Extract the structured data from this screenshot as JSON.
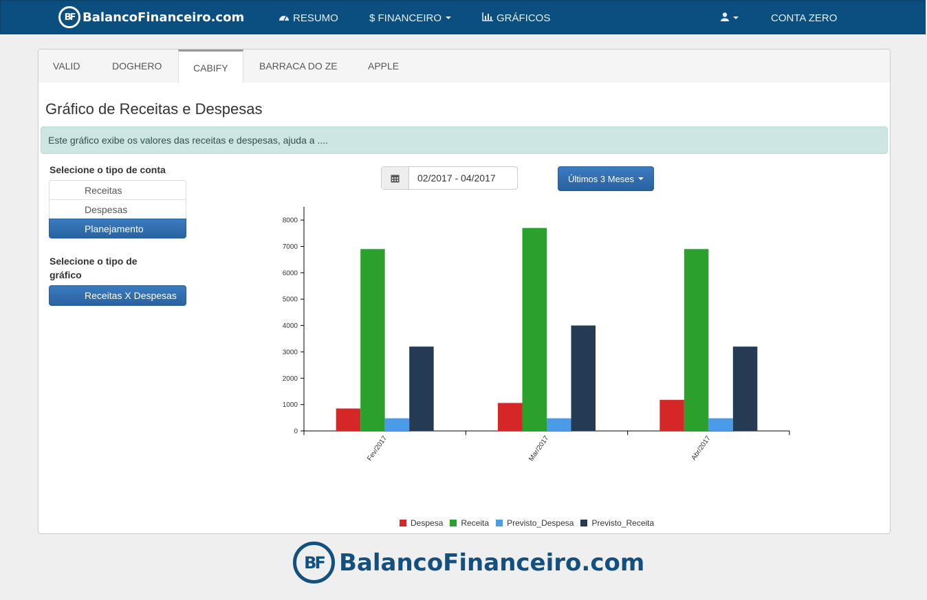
{
  "navbar": {
    "brand": "BalancoFinanceiro.com",
    "brand_mark": "BF",
    "items": [
      {
        "label": "RESUMO",
        "icon": "dashboard-icon"
      },
      {
        "label": "$ FINANCEIRO",
        "icon": "dropdown-caret"
      },
      {
        "label": "GRÁFICOS",
        "icon": "bar-chart-icon"
      }
    ],
    "user_icon": "user-icon",
    "account": "CONTA ZERO"
  },
  "tabs": [
    "VALID",
    "DOGHERO",
    "CABIFY",
    "BARRACA DO ZE",
    "APPLE"
  ],
  "active_tab": "CABIFY",
  "page_title": "Gráfico de Receitas e Despesas",
  "info_text": "Este gráfico exibe os valores das receitas e despesas, ajuda a ....",
  "sidebar": {
    "account_type_label": "Selecione o tipo de conta",
    "account_types": [
      "Receitas",
      "Despesas",
      "Planejamento"
    ],
    "chart_type_label_line1": "Selecione o tipo de",
    "chart_type_label_line2": "gráfico",
    "chart_type_button": "Receitas X Despesas"
  },
  "date_range": "02/2017 - 04/2017",
  "period_button": "Últimos 3 Meses",
  "footer_brand": "BalancoFinanceiro.com",
  "colors": {
    "navbar": "#0a4f7f",
    "despesa": "#d62728",
    "receita": "#2ca02c",
    "previsto_despesa": "#4b9be8",
    "previsto_receita": "#253a53"
  },
  "chart_data": {
    "type": "bar",
    "categories": [
      "Fev/2017",
      "Mar/2017",
      "Abr/2017"
    ],
    "series": [
      {
        "name": "Despesa",
        "values": [
          850,
          1060,
          1180
        ]
      },
      {
        "name": "Receita",
        "values": [
          6900,
          7700,
          6900
        ]
      },
      {
        "name": "Previsto_Despesa",
        "values": [
          480,
          480,
          480
        ]
      },
      {
        "name": "Previsto_Receita",
        "values": [
          3200,
          4000,
          3200
        ]
      }
    ],
    "yticks": [
      0,
      1000,
      2000,
      3000,
      4000,
      5000,
      6000,
      7000,
      8000
    ],
    "ylim": [
      0,
      8500
    ],
    "legend_position": "bottom"
  }
}
